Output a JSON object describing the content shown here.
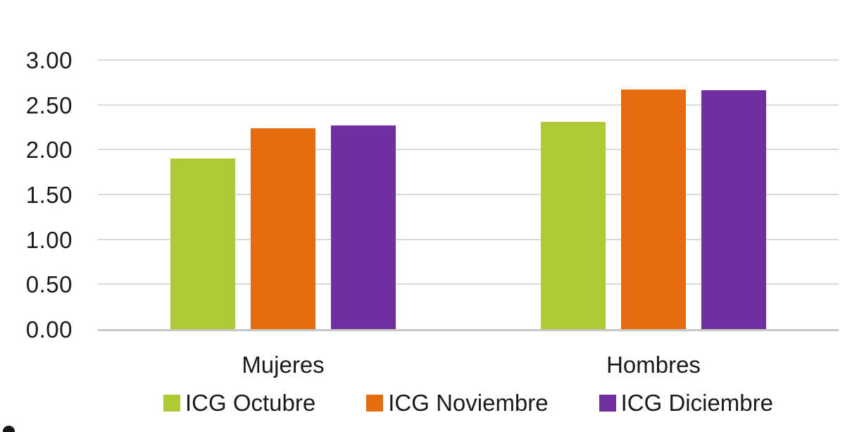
{
  "chart_data": {
    "type": "bar",
    "categories": [
      "Mujeres",
      "Hombres"
    ],
    "series": [
      {
        "name": "ICG Octubre",
        "color": "#adc936",
        "values": [
          1.9,
          2.31
        ]
      },
      {
        "name": "ICG Noviembre",
        "color": "#e56d10",
        "values": [
          2.24,
          2.67
        ]
      },
      {
        "name": "ICG Diciembre",
        "color": "#7030a0",
        "values": [
          2.27,
          2.66
        ]
      }
    ],
    "title": "",
    "xlabel": "",
    "ylabel": "",
    "ylim": [
      0,
      3
    ],
    "ytick_values": [
      0,
      0.5,
      1,
      1.5,
      2,
      2.5,
      3
    ],
    "ytick_labels": [
      "0.00",
      "0.50",
      "1.00",
      "1.50",
      "2.00",
      "2.50",
      "3.00"
    ],
    "grid": true,
    "legend_position": "bottom"
  },
  "colors": {
    "gridline": "#d9d9d9",
    "axis_line": "#c7c7c7",
    "text": "#1a1a1a",
    "background": "#ffffff"
  }
}
